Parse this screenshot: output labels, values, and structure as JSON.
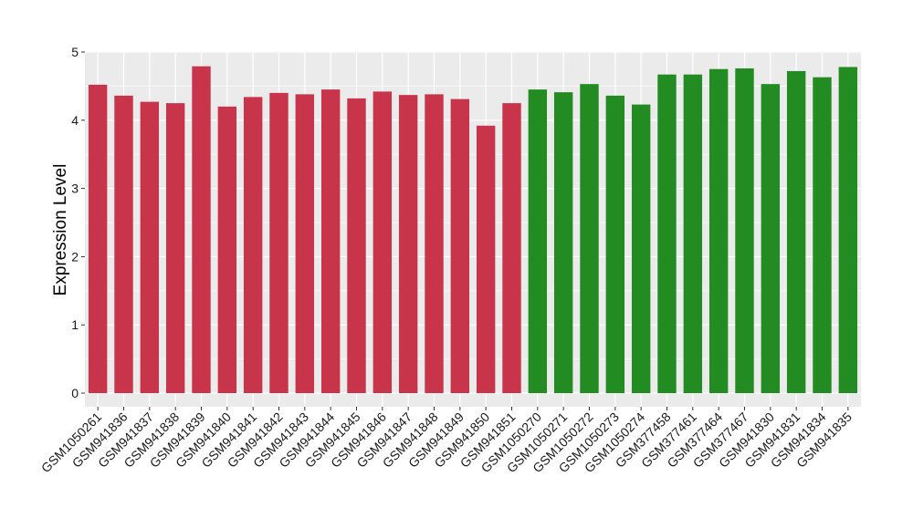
{
  "chart_data": {
    "type": "bar",
    "title": "",
    "xlabel": "",
    "ylabel": "Expression Level",
    "ylim": [
      -0.2,
      5
    ],
    "yticks": [
      0,
      1,
      2,
      3,
      4,
      5
    ],
    "grid": true,
    "legend": "none",
    "background": "#ebebeb",
    "grid_color": "#ffffff",
    "groups": [
      {
        "color": "#c8344a",
        "categories": [
          "GSM1050261",
          "GSM941836",
          "GSM941837",
          "GSM941838",
          "GSM941839",
          "GSM941840",
          "GSM941841",
          "GSM941842",
          "GSM941843",
          "GSM941844",
          "GSM941845",
          "GSM941846",
          "GSM941847",
          "GSM941848",
          "GSM941849",
          "GSM941850",
          "GSM941851"
        ],
        "values": [
          4.52,
          4.36,
          4.27,
          4.25,
          4.79,
          4.2,
          4.34,
          4.4,
          4.38,
          4.45,
          4.32,
          4.42,
          4.37,
          4.38,
          4.31,
          3.92,
          4.25
        ]
      },
      {
        "color": "#228b22",
        "categories": [
          "GSM1050270",
          "GSM1050271",
          "GSM1050272",
          "GSM1050273",
          "GSM1050274",
          "GSM377458",
          "GSM377461",
          "GSM377464",
          "GSM377467",
          "GSM941830",
          "GSM941831",
          "GSM941834",
          "GSM941835"
        ],
        "values": [
          4.45,
          4.41,
          4.53,
          4.36,
          4.23,
          4.67,
          4.67,
          4.75,
          4.76,
          4.53,
          4.72,
          4.63,
          4.78
        ]
      }
    ]
  }
}
